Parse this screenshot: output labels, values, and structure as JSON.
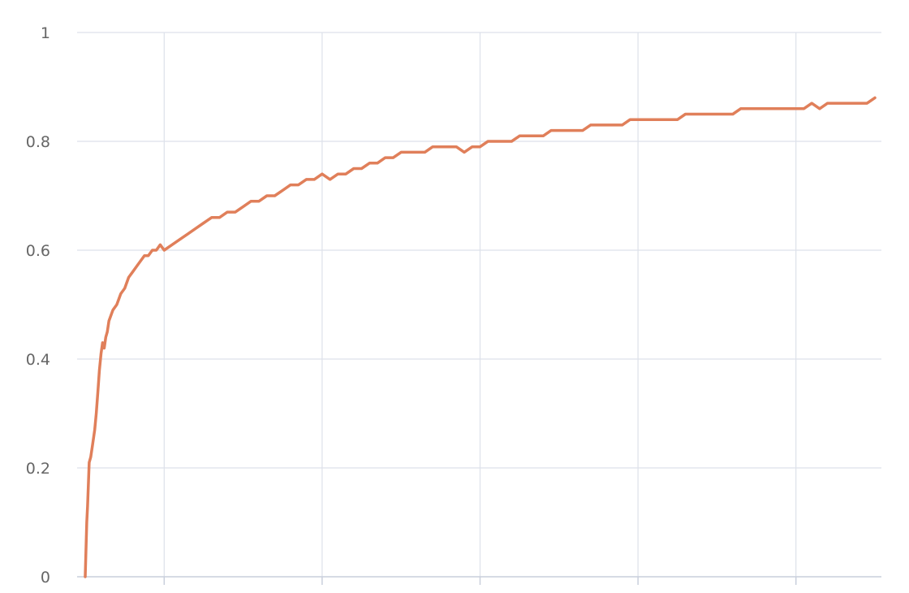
{
  "chart_data": {
    "type": "line",
    "title": "",
    "xlabel": "",
    "ylabel": "",
    "ylim": [
      0,
      1
    ],
    "xlim": [
      0,
      1000
    ],
    "yticks": [
      0,
      0.2,
      0.4,
      0.6,
      0.8,
      1
    ],
    "ytick_labels": [
      "0",
      "0.2",
      "0.4",
      "0.6",
      "0.8",
      "1"
    ],
    "xticks": [
      100,
      300,
      500,
      700,
      900
    ],
    "grid": true,
    "legend": "none",
    "series": [
      {
        "color": "#e07f5a",
        "x": [
          0,
          2,
          3,
          5,
          7,
          9,
          12,
          14,
          16,
          18,
          20,
          22,
          24,
          26,
          28,
          30,
          35,
          40,
          45,
          50,
          55,
          60,
          65,
          70,
          75,
          80,
          85,
          90,
          95,
          100,
          110,
          120,
          130,
          140,
          150,
          160,
          170,
          180,
          190,
          200,
          210,
          220,
          230,
          240,
          250,
          260,
          270,
          280,
          290,
          300,
          310,
          320,
          330,
          340,
          350,
          360,
          370,
          380,
          390,
          400,
          410,
          420,
          430,
          440,
          450,
          460,
          470,
          480,
          490,
          500,
          510,
          520,
          530,
          540,
          550,
          560,
          570,
          580,
          590,
          600,
          610,
          620,
          630,
          640,
          650,
          660,
          670,
          680,
          690,
          700,
          710,
          720,
          730,
          740,
          750,
          760,
          770,
          780,
          790,
          800,
          810,
          820,
          830,
          840,
          850,
          860,
          870,
          880,
          890,
          900,
          910,
          920,
          930,
          940,
          950,
          960,
          970,
          980,
          990,
          1000
        ],
        "y": [
          0.0,
          0.1,
          0.13,
          0.21,
          0.22,
          0.24,
          0.27,
          0.3,
          0.34,
          0.38,
          0.41,
          0.43,
          0.42,
          0.44,
          0.45,
          0.47,
          0.49,
          0.5,
          0.52,
          0.53,
          0.55,
          0.56,
          0.57,
          0.58,
          0.59,
          0.59,
          0.6,
          0.6,
          0.61,
          0.6,
          0.61,
          0.62,
          0.63,
          0.64,
          0.65,
          0.66,
          0.66,
          0.67,
          0.67,
          0.68,
          0.69,
          0.69,
          0.7,
          0.7,
          0.71,
          0.72,
          0.72,
          0.73,
          0.73,
          0.74,
          0.73,
          0.74,
          0.74,
          0.75,
          0.75,
          0.76,
          0.76,
          0.77,
          0.77,
          0.78,
          0.78,
          0.78,
          0.78,
          0.79,
          0.79,
          0.79,
          0.79,
          0.78,
          0.79,
          0.79,
          0.8,
          0.8,
          0.8,
          0.8,
          0.81,
          0.81,
          0.81,
          0.81,
          0.82,
          0.82,
          0.82,
          0.82,
          0.82,
          0.83,
          0.83,
          0.83,
          0.83,
          0.83,
          0.84,
          0.84,
          0.84,
          0.84,
          0.84,
          0.84,
          0.84,
          0.85,
          0.85,
          0.85,
          0.85,
          0.85,
          0.85,
          0.85,
          0.86,
          0.86,
          0.86,
          0.86,
          0.86,
          0.86,
          0.86,
          0.86,
          0.86,
          0.87,
          0.86,
          0.87,
          0.87,
          0.87,
          0.87,
          0.87,
          0.87,
          0.88
        ]
      }
    ]
  }
}
